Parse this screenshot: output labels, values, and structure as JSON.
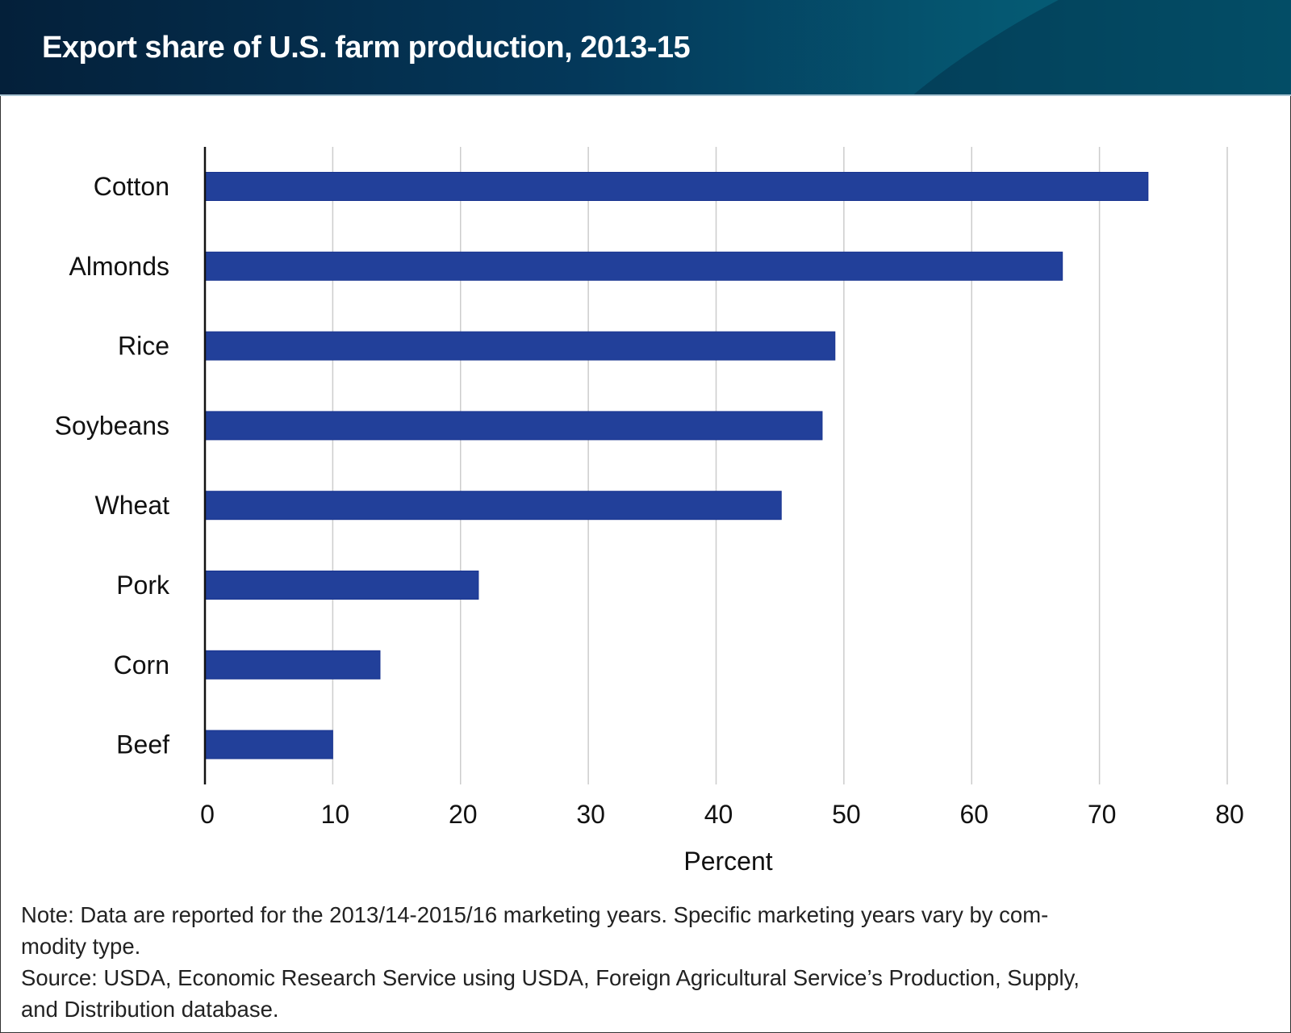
{
  "title": "Export share of U.S. farm production, 2013-15",
  "notes": {
    "note": "Note: Data are reported for the 2013/14-2015/16 marketing years. Specific marketing years vary by com-modity type.",
    "note_line1": "Note: Data are reported for the 2013/14-2015/16 marketing years. Specific marketing years vary by com-",
    "note_line2": "modity type.",
    "source_line1": "Source: USDA, Economic Research Service using USDA, Foreign Agricultural Service’s Production, Supply,",
    "source_line2": "and Distribution database."
  },
  "chart_data": {
    "type": "bar",
    "orientation": "horizontal",
    "title": "Export share of U.S. farm production, 2013-15",
    "xlabel": "Percent",
    "ylabel": "",
    "categories": [
      "Cotton",
      "Almonds",
      "Rice",
      "Soybeans",
      "Wheat",
      "Pork",
      "Corn",
      "Beef"
    ],
    "values": [
      73.8,
      67.1,
      49.3,
      48.3,
      45.1,
      21.4,
      13.7,
      10.0
    ],
    "xlim": [
      0,
      80
    ],
    "xticks": [
      "0",
      "10",
      "20",
      "30",
      "40",
      "50",
      "60",
      "70",
      "80"
    ],
    "grid": true,
    "bar_color": "#22409a",
    "grid_color": "#cccccc"
  }
}
